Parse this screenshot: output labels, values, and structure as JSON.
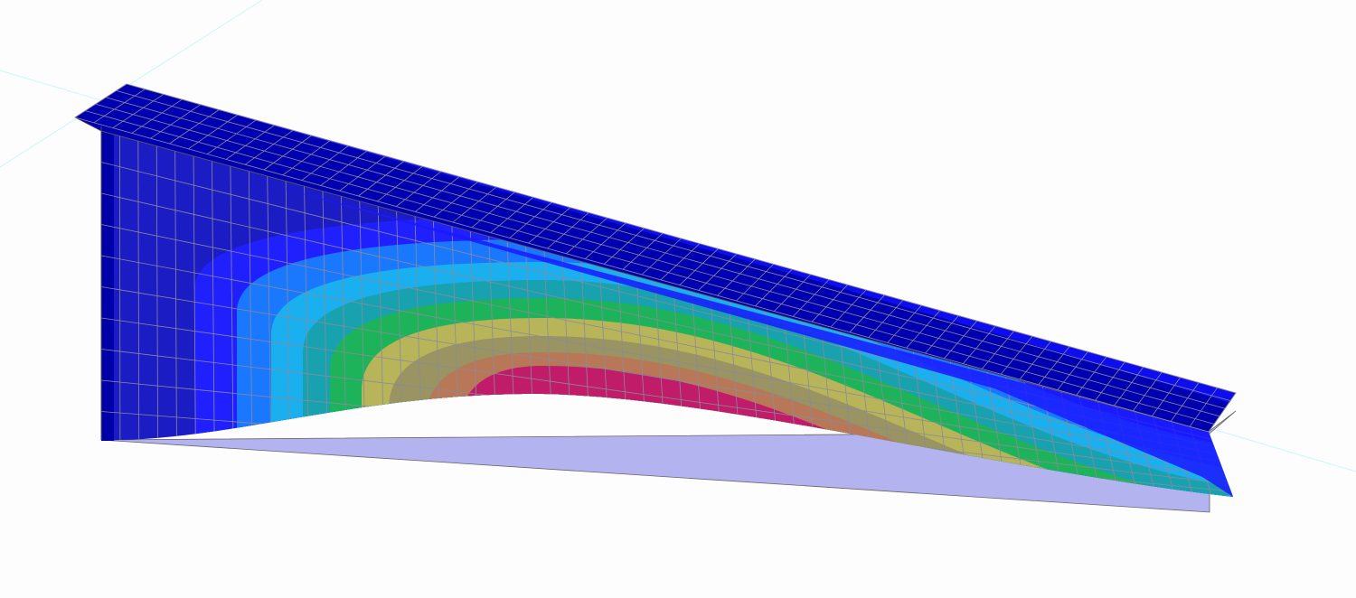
{
  "viewport": {
    "background": "#fdfdfd",
    "axis_color": "#c8f8f8",
    "mesh_color": "#8a8a9a",
    "undeformed_color": "#b3b3f0",
    "flange_color": "#0000b0",
    "flange_highlight": "#1010ff",
    "contour_colors": [
      "#1c1cc4",
      "#2020ff",
      "#1a78ff",
      "#1ab0f0",
      "#18a2b0",
      "#1db35a",
      "#b8b45a",
      "#9a9462",
      "#b87858",
      "#c01c6a"
    ]
  }
}
